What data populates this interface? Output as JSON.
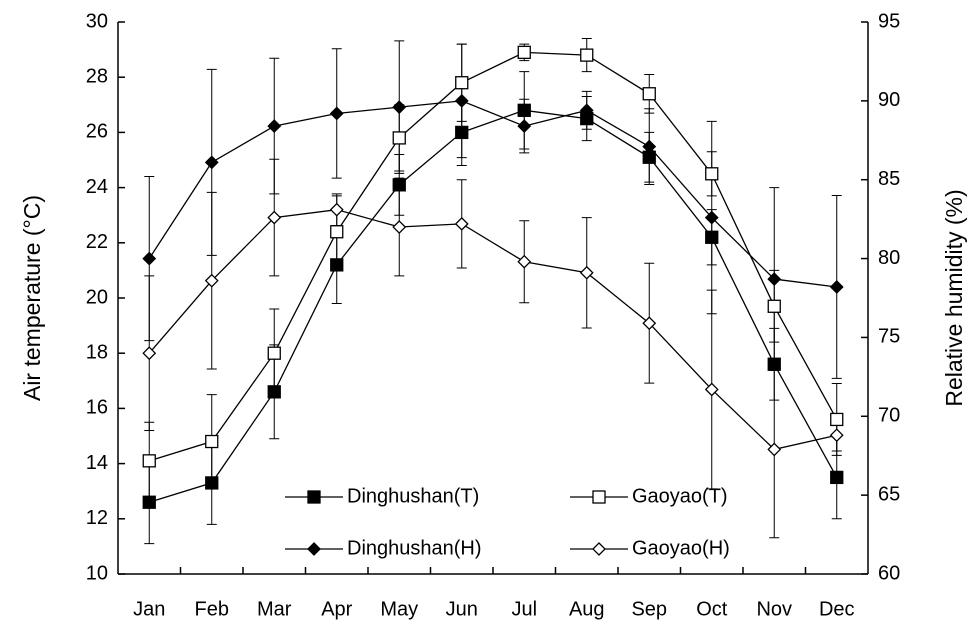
{
  "chart_data": {
    "type": "line",
    "categories": [
      "Jan",
      "Feb",
      "Mar",
      "Apr",
      "May",
      "Jun",
      "Jul",
      "Aug",
      "Sep",
      "Oct",
      "Nov",
      "Dec"
    ],
    "y_label": "Air temperature (°C)",
    "y2_label": "Relative humidity (%)",
    "ylim": [
      10,
      30
    ],
    "yticks": [
      10,
      12,
      14,
      16,
      18,
      20,
      22,
      24,
      26,
      28,
      30
    ],
    "y2lim": [
      60,
      95
    ],
    "y2ticks": [
      60,
      65,
      70,
      75,
      80,
      85,
      90,
      95
    ],
    "grid": false,
    "series": [
      {
        "name": "Dinghushan(T)",
        "color": "#000000",
        "marker": "square",
        "filled": true,
        "values": [
          12.6,
          13.3,
          16.6,
          21.2,
          24.1,
          26.0,
          26.8,
          26.5,
          25.1,
          22.2,
          17.6,
          13.5
        ],
        "errors": [
          1.5,
          1.5,
          1.7,
          1.4,
          1.1,
          1.2,
          1.4,
          0.8,
          0.9,
          1.0,
          1.3,
          1.5
        ]
      },
      {
        "name": "Gaoyao(T)",
        "color": "#000000",
        "marker": "square",
        "filled": false,
        "values": [
          14.1,
          14.8,
          18.0,
          22.4,
          25.8,
          27.8,
          28.9,
          28.8,
          27.4,
          24.5,
          19.7,
          15.6
        ],
        "errors": [
          1.4,
          1.7,
          1.6,
          1.3,
          1.2,
          1.4,
          0.3,
          0.6,
          0.7,
          0.8,
          1.3,
          1.3
        ]
      },
      {
        "name": "Dinghushan(H)",
        "color": "#000000",
        "marker": "diamond",
        "filled": true,
        "axis": "y2",
        "values": [
          80.0,
          86.1,
          88.4,
          89.2,
          89.6,
          90.0,
          88.4,
          89.4,
          87.1,
          82.6,
          78.7,
          78.2
        ],
        "errors": [
          5.2,
          5.9,
          4.3,
          4.1,
          4.2,
          3.6,
          1.7,
          1.2,
          2.4,
          6.1,
          5.8,
          5.8
        ]
      },
      {
        "name": "Gaoyao(H)",
        "color": "#000000",
        "marker": "diamond",
        "filled": false,
        "axis": "y2",
        "values": [
          74.0,
          78.6,
          82.6,
          83.1,
          82.0,
          82.2,
          79.8,
          79.1,
          75.9,
          71.7,
          67.9,
          68.8
        ],
        "errors": [
          4.9,
          5.6,
          3.7,
          1.0,
          3.1,
          2.8,
          2.6,
          3.5,
          3.8,
          6.3,
          5.6,
          1.0
        ]
      }
    ]
  }
}
